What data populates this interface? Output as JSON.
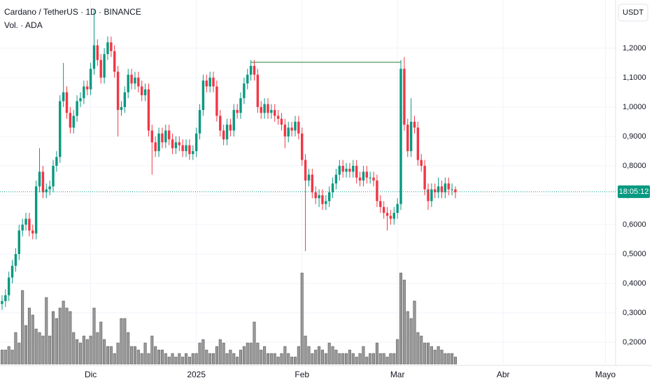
{
  "chart_data": {
    "type": "candlestick",
    "title": "Cardano / TetherUS · 1D · BINANCE",
    "subtitle": "Vol. · ADA",
    "currency": "USDT",
    "countdown": "18:05:12",
    "last_price": 0.712,
    "up_color": "#089981",
    "down_color": "#f23645",
    "volume_color": "#9a9a9a",
    "grid": true,
    "ylim": [
      0.126,
      1.364
    ],
    "yticks": [
      {
        "value": 0.2,
        "label": "0,2000"
      },
      {
        "value": 0.3,
        "label": "0,3000"
      },
      {
        "value": 0.4,
        "label": "0,4000"
      },
      {
        "value": 0.5,
        "label": "0,5000"
      },
      {
        "value": 0.6,
        "label": "0,6000"
      },
      {
        "value": 0.7,
        "label": "0,7000"
      },
      {
        "value": 0.8,
        "label": "0,8000"
      },
      {
        "value": 0.9,
        "label": "0,9000"
      },
      {
        "value": 1.0,
        "label": "1,0000"
      },
      {
        "value": 1.1,
        "label": "1,1000"
      },
      {
        "value": 1.2,
        "label": "1,2000"
      }
    ],
    "xlim": [
      -0.6,
      180
    ],
    "xticks": [
      {
        "value": 26,
        "label": "Dic"
      },
      {
        "value": 57,
        "label": "2025"
      },
      {
        "value": 88,
        "label": "Feb"
      },
      {
        "value": 116,
        "label": "Mar"
      },
      {
        "value": 147,
        "label": "Abr"
      },
      {
        "value": 177,
        "label": "Mayo"
      }
    ],
    "vlim": [
      0,
      140
    ],
    "hline": {
      "value": 1.152,
      "from": 73,
      "to": 117,
      "color": "#2e7d32"
    },
    "x": [
      0,
      1,
      2,
      3,
      4,
      5,
      6,
      7,
      8,
      9,
      10,
      11,
      12,
      13,
      14,
      15,
      16,
      17,
      18,
      19,
      20,
      21,
      22,
      23,
      24,
      25,
      26,
      27,
      28,
      29,
      30,
      31,
      32,
      33,
      34,
      35,
      36,
      37,
      38,
      39,
      40,
      41,
      42,
      43,
      44,
      45,
      46,
      47,
      48,
      49,
      50,
      51,
      52,
      53,
      54,
      55,
      56,
      57,
      58,
      59,
      60,
      61,
      62,
      63,
      64,
      65,
      66,
      67,
      68,
      69,
      70,
      71,
      72,
      73,
      74,
      75,
      76,
      77,
      78,
      79,
      80,
      81,
      82,
      83,
      84,
      85,
      86,
      87,
      88,
      89,
      90,
      91,
      92,
      93,
      94,
      95,
      96,
      97,
      98,
      99,
      100,
      101,
      102,
      103,
      104,
      105,
      106,
      107,
      108,
      109,
      110,
      111,
      112,
      113,
      114,
      115,
      116,
      117,
      118,
      119,
      120,
      121,
      122,
      123,
      124,
      125,
      126,
      127,
      128,
      129,
      130,
      131,
      132,
      133
    ],
    "open": [
      0.33,
      0.34,
      0.36,
      0.42,
      0.46,
      0.5,
      0.58,
      0.6,
      0.62,
      0.58,
      0.57,
      0.73,
      0.78,
      0.71,
      0.72,
      0.73,
      0.8,
      0.83,
      1.02,
      1.05,
      0.98,
      0.93,
      0.97,
      1.02,
      1.03,
      1.07,
      1.06,
      1.13,
      1.21,
      1.16,
      1.1,
      1.18,
      1.22,
      1.19,
      1.12,
      0.99,
      1.0,
      1.05,
      1.11,
      1.08,
      1.1,
      1.07,
      1.04,
      1.06,
      0.92,
      0.88,
      0.85,
      0.91,
      0.88,
      0.92,
      0.89,
      0.86,
      0.88,
      0.87,
      0.85,
      0.87,
      0.84,
      0.85,
      0.91,
      0.99,
      1.09,
      1.07,
      1.1,
      1.07,
      0.97,
      0.92,
      0.89,
      0.94,
      0.92,
      0.99,
      0.98,
      1.03,
      1.08,
      1.11,
      1.14,
      1.11,
      1.0,
      0.98,
      1.01,
      0.98,
      0.99,
      0.97,
      0.96,
      0.94,
      0.9,
      0.93,
      0.92,
      0.95,
      0.91,
      0.82,
      0.75,
      0.77,
      0.71,
      0.69,
      0.7,
      0.67,
      0.68,
      0.71,
      0.74,
      0.77,
      0.8,
      0.78,
      0.79,
      0.78,
      0.8,
      0.76,
      0.75,
      0.78,
      0.76,
      0.76,
      0.75,
      0.68,
      0.66,
      0.64,
      0.63,
      0.62,
      0.64,
      0.67,
      1.13,
      0.94,
      0.85,
      0.95,
      0.93,
      0.82,
      0.8,
      0.72,
      0.68,
      0.72,
      0.71,
      0.73,
      0.71,
      0.74,
      0.72,
      0.72
    ],
    "high": [
      0.36,
      0.38,
      0.44,
      0.48,
      0.52,
      0.6,
      0.62,
      0.64,
      0.64,
      0.6,
      0.75,
      0.86,
      0.8,
      0.74,
      0.75,
      0.82,
      0.85,
      1.04,
      1.15,
      1.07,
      1.0,
      0.99,
      1.04,
      1.05,
      1.09,
      1.09,
      1.15,
      1.33,
      1.23,
      1.18,
      1.2,
      1.24,
      1.24,
      1.21,
      1.14,
      1.02,
      1.07,
      1.13,
      1.13,
      1.12,
      1.12,
      1.09,
      1.08,
      1.08,
      0.94,
      0.9,
      0.93,
      0.93,
      0.94,
      0.94,
      0.91,
      0.9,
      0.9,
      0.89,
      0.89,
      0.89,
      0.87,
      0.93,
      1.01,
      1.11,
      1.11,
      1.12,
      1.12,
      1.09,
      0.99,
      0.94,
      0.96,
      0.96,
      1.01,
      1.01,
      1.05,
      1.1,
      1.13,
      1.16,
      1.16,
      1.13,
      1.02,
      1.03,
      1.03,
      1.01,
      1.01,
      0.99,
      0.98,
      0.96,
      0.95,
      0.95,
      0.97,
      0.97,
      0.93,
      0.84,
      0.79,
      0.79,
      0.73,
      0.72,
      0.72,
      0.7,
      0.73,
      0.76,
      0.79,
      0.82,
      0.82,
      0.81,
      0.81,
      0.82,
      0.82,
      0.78,
      0.8,
      0.8,
      0.78,
      0.78,
      0.77,
      0.7,
      0.68,
      0.66,
      0.65,
      0.66,
      0.69,
      1.16,
      1.17,
      0.96,
      1.03,
      0.97,
      0.95,
      0.84,
      0.82,
      0.74,
      0.74,
      0.74,
      0.76,
      0.75,
      0.76,
      0.76,
      0.74,
      0.73
    ],
    "low": [
      0.31,
      0.32,
      0.34,
      0.4,
      0.44,
      0.48,
      0.56,
      0.58,
      0.56,
      0.55,
      0.55,
      0.71,
      0.69,
      0.69,
      0.7,
      0.71,
      0.78,
      0.81,
      1.0,
      0.96,
      0.91,
      0.91,
      0.95,
      1.0,
      1.01,
      1.04,
      1.04,
      1.11,
      1.14,
      1.08,
      1.08,
      1.16,
      1.17,
      1.1,
      0.9,
      0.97,
      0.98,
      1.03,
      1.06,
      1.06,
      1.05,
      1.02,
      1.02,
      0.9,
      0.77,
      0.83,
      0.83,
      0.86,
      0.86,
      0.87,
      0.84,
      0.84,
      0.85,
      0.83,
      0.83,
      0.82,
      0.82,
      0.83,
      0.89,
      0.97,
      1.05,
      1.05,
      1.05,
      0.95,
      0.9,
      0.87,
      0.87,
      0.9,
      0.9,
      0.96,
      0.96,
      1.01,
      1.06,
      1.09,
      1.09,
      0.98,
      0.96,
      0.96,
      0.96,
      0.96,
      0.95,
      0.94,
      0.92,
      0.86,
      0.88,
      0.9,
      0.9,
      0.89,
      0.8,
      0.51,
      0.73,
      0.69,
      0.67,
      0.66,
      0.65,
      0.65,
      0.66,
      0.69,
      0.72,
      0.75,
      0.76,
      0.76,
      0.76,
      0.76,
      0.74,
      0.73,
      0.73,
      0.74,
      0.74,
      0.73,
      0.66,
      0.64,
      0.62,
      0.58,
      0.6,
      0.6,
      0.62,
      0.65,
      0.92,
      0.83,
      0.83,
      0.91,
      0.8,
      0.78,
      0.7,
      0.65,
      0.66,
      0.69,
      0.69,
      0.69,
      0.69,
      0.7,
      0.7,
      0.69
    ],
    "close": [
      0.34,
      0.36,
      0.42,
      0.46,
      0.5,
      0.58,
      0.6,
      0.62,
      0.58,
      0.57,
      0.73,
      0.78,
      0.71,
      0.72,
      0.73,
      0.8,
      0.83,
      1.02,
      1.05,
      0.98,
      0.93,
      0.97,
      1.02,
      1.03,
      1.07,
      1.06,
      1.13,
      1.21,
      1.16,
      1.1,
      1.18,
      1.22,
      1.19,
      1.12,
      0.99,
      1.0,
      1.05,
      1.11,
      1.08,
      1.1,
      1.07,
      1.04,
      1.06,
      0.92,
      0.88,
      0.85,
      0.91,
      0.88,
      0.92,
      0.89,
      0.86,
      0.88,
      0.87,
      0.85,
      0.87,
      0.84,
      0.85,
      0.91,
      0.99,
      1.09,
      1.07,
      1.1,
      1.07,
      0.97,
      0.92,
      0.89,
      0.94,
      0.92,
      0.99,
      0.98,
      1.03,
      1.08,
      1.11,
      1.14,
      1.11,
      1.0,
      0.98,
      1.01,
      0.98,
      0.99,
      0.97,
      0.96,
      0.94,
      0.9,
      0.93,
      0.92,
      0.95,
      0.91,
      0.82,
      0.75,
      0.77,
      0.71,
      0.69,
      0.7,
      0.67,
      0.68,
      0.71,
      0.74,
      0.77,
      0.8,
      0.78,
      0.79,
      0.78,
      0.8,
      0.76,
      0.75,
      0.78,
      0.76,
      0.76,
      0.75,
      0.68,
      0.66,
      0.64,
      0.63,
      0.62,
      0.64,
      0.67,
      1.13,
      0.94,
      0.85,
      0.95,
      0.93,
      0.82,
      0.8,
      0.72,
      0.68,
      0.72,
      0.71,
      0.73,
      0.71,
      0.74,
      0.72,
      0.72,
      0.71
    ],
    "volume": [
      20,
      20,
      25,
      20,
      45,
      30,
      105,
      55,
      80,
      70,
      50,
      45,
      40,
      95,
      40,
      75,
      65,
      80,
      90,
      80,
      75,
      45,
      35,
      30,
      40,
      35,
      40,
      80,
      45,
      60,
      35,
      25,
      25,
      15,
      30,
      65,
      65,
      45,
      25,
      25,
      20,
      15,
      30,
      15,
      40,
      25,
      20,
      20,
      15,
      10,
      15,
      10,
      15,
      10,
      15,
      10,
      15,
      15,
      30,
      35,
      20,
      15,
      15,
      25,
      35,
      30,
      15,
      20,
      15,
      10,
      20,
      25,
      30,
      30,
      60,
      30,
      20,
      25,
      15,
      15,
      15,
      10,
      15,
      25,
      15,
      10,
      10,
      25,
      130,
      40,
      25,
      15,
      20,
      25,
      20,
      15,
      30,
      25,
      20,
      15,
      15,
      15,
      20,
      15,
      10,
      15,
      25,
      10,
      15,
      15,
      30,
      15,
      15,
      10,
      15,
      15,
      35,
      130,
      120,
      75,
      65,
      90,
      45,
      40,
      30,
      30,
      25,
      20,
      25,
      20,
      15,
      15,
      15,
      10
    ]
  }
}
